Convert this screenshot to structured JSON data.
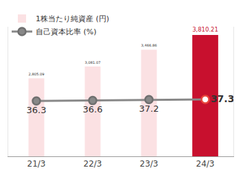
{
  "chart_data": {
    "type": "bar",
    "categories": [
      "21/3",
      "22/3",
      "23/3",
      "24/3"
    ],
    "series": [
      {
        "name": "1株当たり純資産 (円)",
        "type": "bar",
        "colors": [
          "#fbe1e3",
          "#fbe1e3",
          "#fbe1e3",
          "#c8102e"
        ],
        "values": [
          2805.09,
          3081.07,
          3466.86,
          3810.21
        ],
        "value_labels": [
          "2,805.09",
          "3,081.07",
          "3,466.86",
          "3,810.21"
        ]
      },
      {
        "name": "自己資本比率 (%)",
        "type": "line",
        "axis": "y2",
        "color": "#888888",
        "marker": "circle",
        "values": [
          36.3,
          36.6,
          37.2,
          37.3
        ]
      }
    ],
    "ylim": [
      1000,
      4000
    ],
    "y2lim": [
      0,
      85
    ],
    "data_labels": true,
    "tick_labels": "x",
    "legend": "upper left",
    "grid": false
  }
}
